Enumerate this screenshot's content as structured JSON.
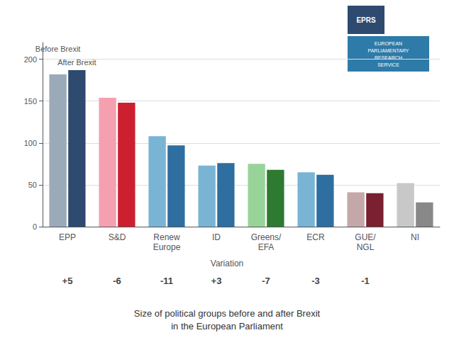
{
  "chart_data": {
    "type": "bar",
    "title": "Size of political groups before and after Brexit\nin the European Parliament",
    "categories": [
      "EPP",
      "S&D",
      "Renew\nEurope",
      "ID",
      "Greens/\nEFA",
      "ECR",
      "GUE/\nNGL",
      "NI"
    ],
    "series": [
      {
        "name": "Before Brexit",
        "values": [
          182,
          154,
          108,
          73,
          75,
          65,
          41,
          52
        ],
        "colors": [
          "#9baab8",
          "#f5a0b0",
          "#7ab4d4",
          "#7ab4d4",
          "#98d49a",
          "#7ab4d4",
          "#c4a8a8",
          "#c8c8c8"
        ]
      },
      {
        "name": "After Brexit",
        "values": [
          187,
          148,
          97,
          76,
          68,
          62,
          40,
          29
        ],
        "colors": [
          "#2e4a6e",
          "#cc2030",
          "#2e6ea0",
          "#2e6ea0",
          "#2e7a30",
          "#2e6ea0",
          "#7a2030",
          "#888888"
        ]
      }
    ],
    "variation_label": "Variation",
    "variation": [
      "+5",
      "-6",
      "-11",
      "+3",
      "-7",
      "-3",
      "-1",
      null
    ],
    "annotations": [
      {
        "text": "EPRS",
        "color": "#2e4a6e"
      },
      {
        "text": "EUROPEAN\nPARLIAMENTARY\nRESEARCH\nSERVICE",
        "color": "#2e7aa8"
      }
    ],
    "ylim": [
      0,
      220
    ],
    "yticks": [
      0,
      50,
      100,
      150,
      200
    ],
    "grid": true
  }
}
